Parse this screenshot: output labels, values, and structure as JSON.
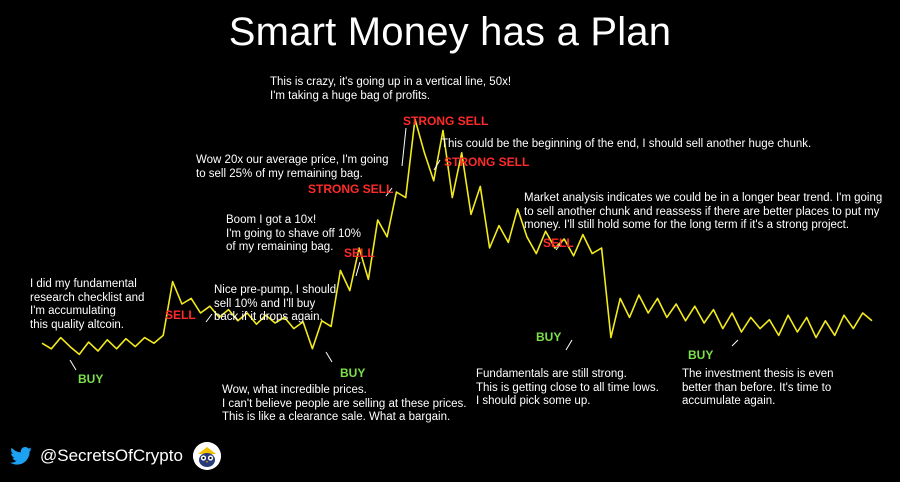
{
  "title": "Smart Money has a Plan",
  "footer": {
    "handle": "@SecretsOfCrypto"
  },
  "colors": {
    "background": "#000000",
    "line": "#f2ea1c",
    "buy": "#7be04a",
    "sell": "#ff2a2a",
    "text": "#ffffff"
  },
  "icons": {
    "twitter": "twitter-bird-icon",
    "avatar": "owl-avatar-icon"
  },
  "annotations": [
    "I did my fundamental\nresearch checklist and\nI'm accumulating\nthis quality altcoin.",
    "Nice pre-pump, I should\nsell 10% and I'll buy\nback if it drops again.",
    "Wow, what incredible prices.\nI can't believe people are selling at these prices.\nThis is like a clearance sale. What a bargain.",
    "Boom I got a 10x!\nI'm going to shave off 10%\nof my remaining bag.",
    "Wow 20x our average price, I'm going\nto sell 25% of my remaining bag.",
    "This is crazy, it's going up in a vertical line, 50x!\nI'm taking a huge bag of profits.",
    "This could be the beginning of the end, I should sell another huge chunk.",
    "Market analysis indicates we could be in a longer bear trend. I'm going\nto sell another chunk and reassess if there are better places to put my\nmoney. I'll still hold some for the long term if it's a strong project.",
    "Fundamentals are still strong.\nThis is getting close to all time lows.\nI should pick some up.",
    "The investment thesis is even\nbetter than before. It's time to\naccumulate again."
  ],
  "signals": [
    {
      "label": "BUY",
      "type": "buy"
    },
    {
      "label": "SELL",
      "type": "sell"
    },
    {
      "label": "BUY",
      "type": "buy"
    },
    {
      "label": "SELL",
      "type": "sell"
    },
    {
      "label": "STRONG SELL",
      "type": "sell"
    },
    {
      "label": "STRONG SELL",
      "type": "sell"
    },
    {
      "label": "STRONG SELL",
      "type": "sell"
    },
    {
      "label": "SELL",
      "type": "sell"
    },
    {
      "label": "BUY",
      "type": "buy"
    },
    {
      "label": "BUY",
      "type": "buy"
    }
  ],
  "chart_data": {
    "type": "line",
    "grid": false,
    "series": [
      {
        "values": [
          0.15,
          0.1,
          0.2,
          0.12,
          0.05,
          0.16,
          0.08,
          0.18,
          0.1,
          0.19,
          0.12,
          0.2,
          0.15,
          0.22,
          0.7,
          0.5,
          0.55,
          0.42,
          0.48,
          0.38,
          0.45,
          0.35,
          0.42,
          0.32,
          0.4,
          0.33,
          0.38,
          0.28,
          0.34,
          0.1,
          0.35,
          0.3,
          0.8,
          0.62,
          1.0,
          0.72,
          1.25,
          1.1,
          1.5,
          1.45,
          2.15,
          1.85,
          1.6,
          2.05,
          1.45,
          1.85,
          1.3,
          1.55,
          1.0,
          1.2,
          1.05,
          1.35,
          1.1,
          0.95,
          1.15,
          1.0,
          1.08,
          0.93,
          1.12,
          0.95,
          1.0,
          0.2,
          0.55,
          0.38,
          0.58,
          0.42,
          0.55,
          0.38,
          0.5,
          0.35,
          0.48,
          0.33,
          0.45,
          0.28,
          0.42,
          0.25,
          0.38,
          0.28,
          0.36,
          0.22,
          0.4,
          0.25,
          0.38,
          0.2,
          0.35,
          0.22,
          0.4,
          0.28,
          0.42,
          0.35
        ]
      }
    ]
  }
}
